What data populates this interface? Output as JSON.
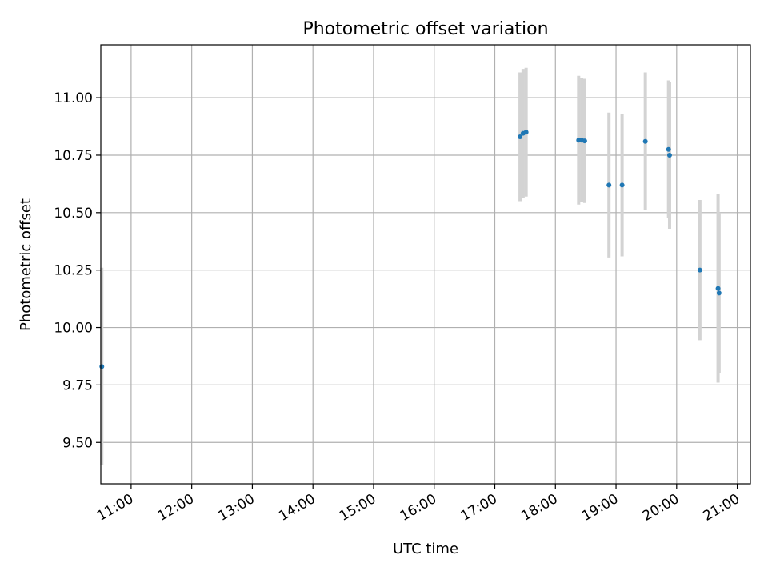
{
  "chart_data": {
    "type": "scatter",
    "title": "Photometric offset variation",
    "xlabel": "UTC time",
    "ylabel": "Photometric offset",
    "x_unit": "time",
    "xlim": [
      "10:30",
      "21:13"
    ],
    "ylim": [
      9.32,
      11.23
    ],
    "x_ticks": [
      "11:00",
      "12:00",
      "13:00",
      "14:00",
      "15:00",
      "16:00",
      "17:00",
      "18:00",
      "19:00",
      "20:00",
      "21:00"
    ],
    "y_ticks": [
      9.5,
      9.75,
      10.0,
      10.25,
      10.5,
      10.75,
      11.0
    ],
    "y_tick_labels": [
      "9.50",
      "9.75",
      "10.00",
      "10.25",
      "10.50",
      "10.75",
      "11.00"
    ],
    "grid": true,
    "colors": {
      "marker": "#1f77b4",
      "errorbar": "#d3d3d3",
      "grid": "#b0b0b0"
    },
    "points": [
      {
        "x": "10:31",
        "y": 9.83,
        "err": 0.43
      },
      {
        "x": "17:25",
        "y": 10.83,
        "err": 0.28
      },
      {
        "x": "17:28",
        "y": 10.845,
        "err": 0.28
      },
      {
        "x": "17:31",
        "y": 10.85,
        "err": 0.28
      },
      {
        "x": "18:23",
        "y": 10.815,
        "err": 0.28
      },
      {
        "x": "18:26",
        "y": 10.815,
        "err": 0.27
      },
      {
        "x": "18:29",
        "y": 10.812,
        "err": 0.27
      },
      {
        "x": "18:53",
        "y": 10.62,
        "err": 0.315
      },
      {
        "x": "19:06",
        "y": 10.62,
        "err": 0.31
      },
      {
        "x": "19:29",
        "y": 10.81,
        "err": 0.3
      },
      {
        "x": "19:52",
        "y": 10.775,
        "err": 0.3
      },
      {
        "x": "19:53",
        "y": 10.75,
        "err": 0.32
      },
      {
        "x": "20:23",
        "y": 10.25,
        "err": 0.305
      },
      {
        "x": "20:41",
        "y": 10.17,
        "err": 0.41
      },
      {
        "x": "20:42",
        "y": 10.15,
        "err": 0.35
      }
    ]
  }
}
